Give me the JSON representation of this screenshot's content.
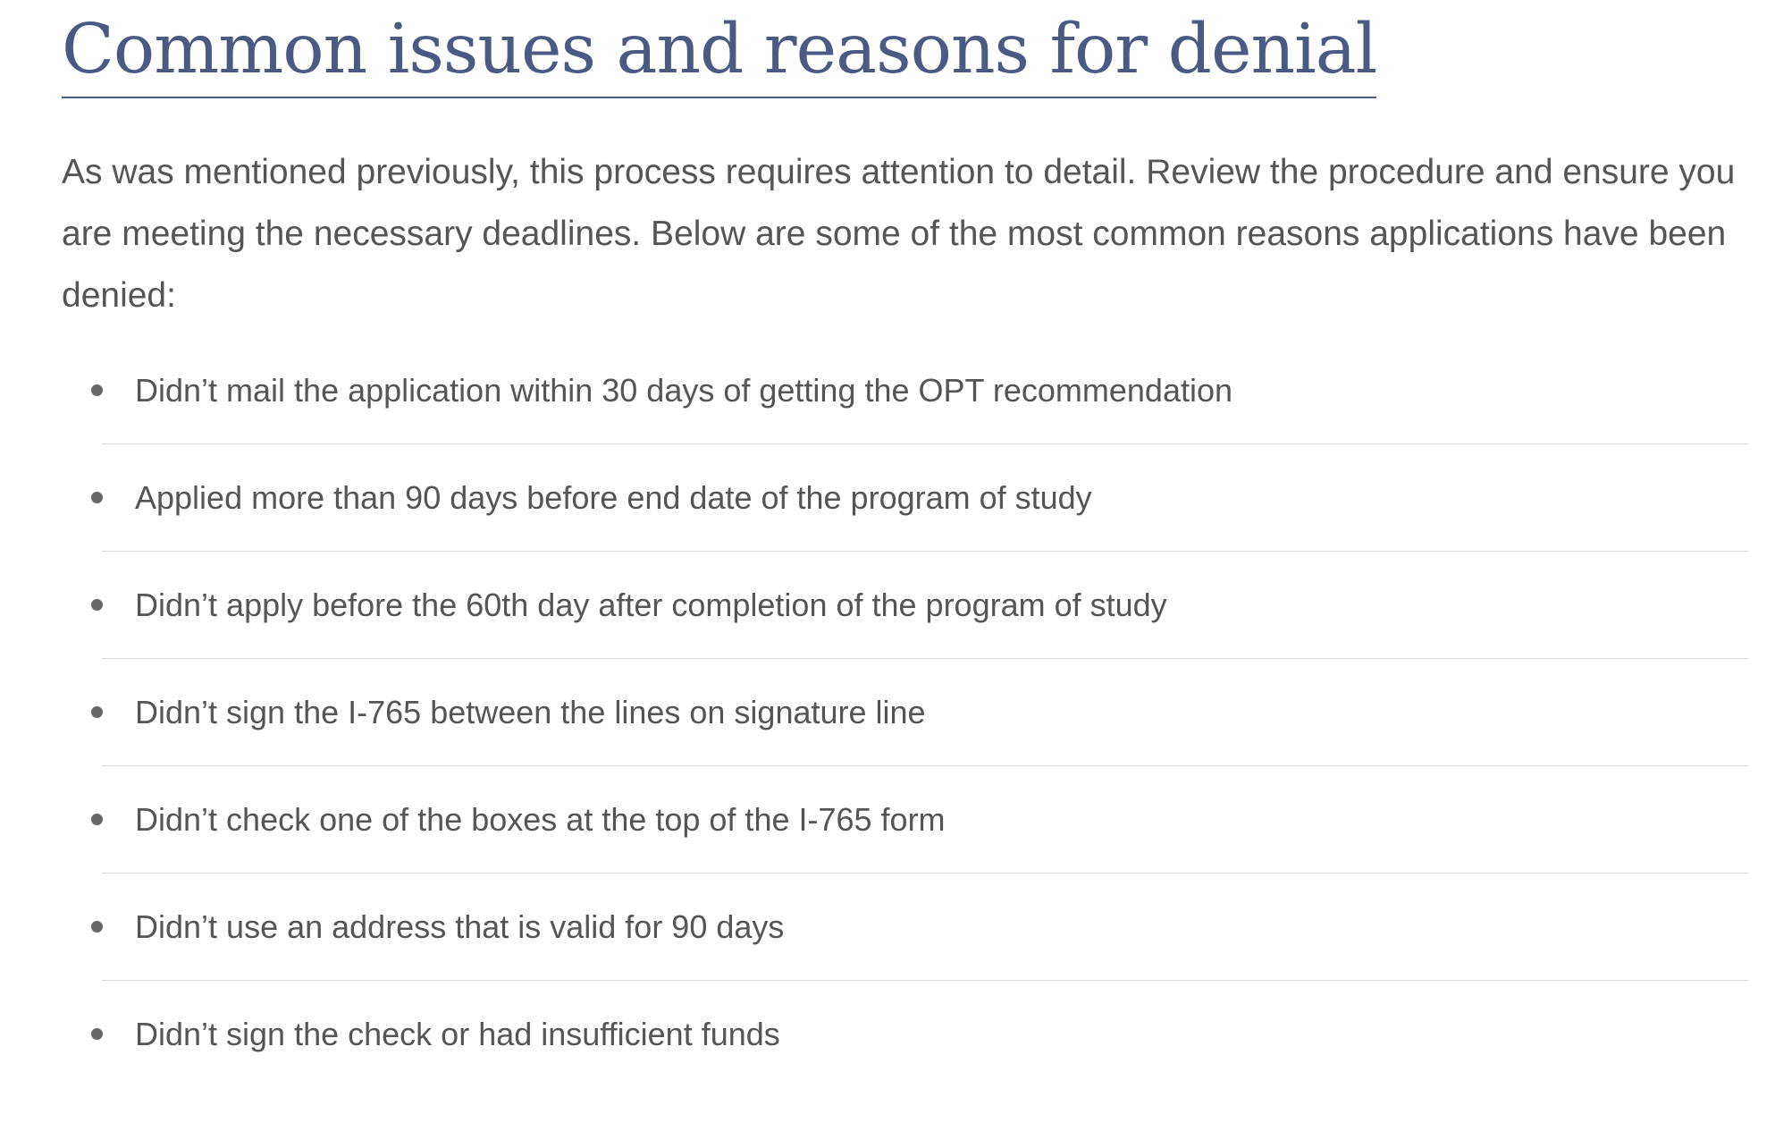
{
  "page": {
    "title": "Common issues and reasons for denial",
    "intro": "As was mentioned previously, this process requires attention to detail.  Review the procedure and ensure you are meeting the necessary deadlines.  Below are some of the most common reasons applications have been denied:"
  },
  "issues": [
    "Didn’t mail the application within 30 days of getting the OPT recommendation",
    "Applied more than 90 days before end date of the program of study",
    "Didn’t apply before the 60th day after completion of the program of study",
    "Didn’t sign the I-765 between the lines on signature line",
    "Didn’t check one of the boxes at the top of the I-765 form",
    "Didn’t use an address that is valid for 90 days",
    "Didn’t sign the check or had insufficient funds"
  ],
  "colors": {
    "title": "#4b5a83",
    "body_text": "#555555",
    "divider": "#d8d8d8",
    "bullet": "#666666"
  }
}
